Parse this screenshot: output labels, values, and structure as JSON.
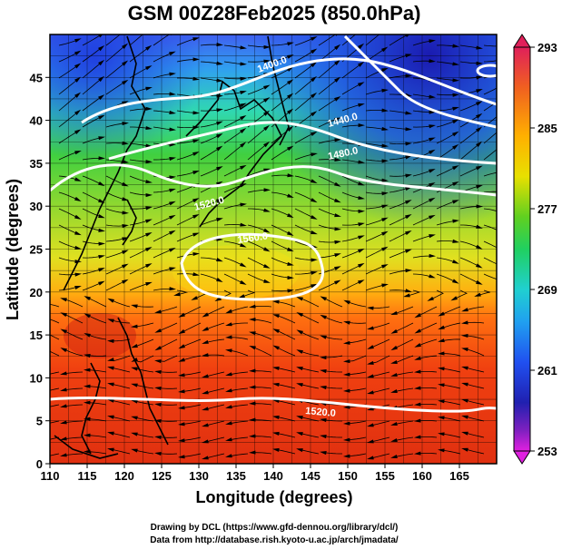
{
  "title": "GSM 00Z28Feb2025 (850.0hPa)",
  "xlabel": "Longitude (degrees)",
  "ylabel": "Latitude  (degrees)",
  "x_ticks": [
    "110",
    "115",
    "120",
    "125",
    "130",
    "135",
    "140",
    "145",
    "150",
    "155",
    "160",
    "165"
  ],
  "y_ticks": [
    "0",
    "5",
    "10",
    "15",
    "20",
    "25",
    "30",
    "35",
    "40",
    "45"
  ],
  "xlim": [
    110,
    170
  ],
  "ylim": [
    0,
    50
  ],
  "colorbar": {
    "labels": [
      "293",
      "285",
      "277",
      "269",
      "261",
      "253"
    ],
    "range": [
      253,
      293
    ],
    "colors": [
      "#e0205a",
      "#f07020",
      "#ffb000",
      "#ffe000",
      "#b0e000",
      "#30d030",
      "#20e0c0",
      "#20b0f0",
      "#2060f0",
      "#2020c0",
      "#6020c0",
      "#e020e0"
    ]
  },
  "contours": [
    {
      "label": "1520.0"
    },
    {
      "label": "1560.0"
    },
    {
      "label": "1440.0"
    },
    {
      "label": "1480.0"
    },
    {
      "label": "1400.0"
    },
    {
      "label": "1520.0"
    }
  ],
  "credits": {
    "line1": "Drawing by DCL (https://www.gfd-dennou.org/library/dcl/)",
    "line2": "Data from http://database.rish.kyoto-u.ac.jp/arch/jmadata/"
  }
}
